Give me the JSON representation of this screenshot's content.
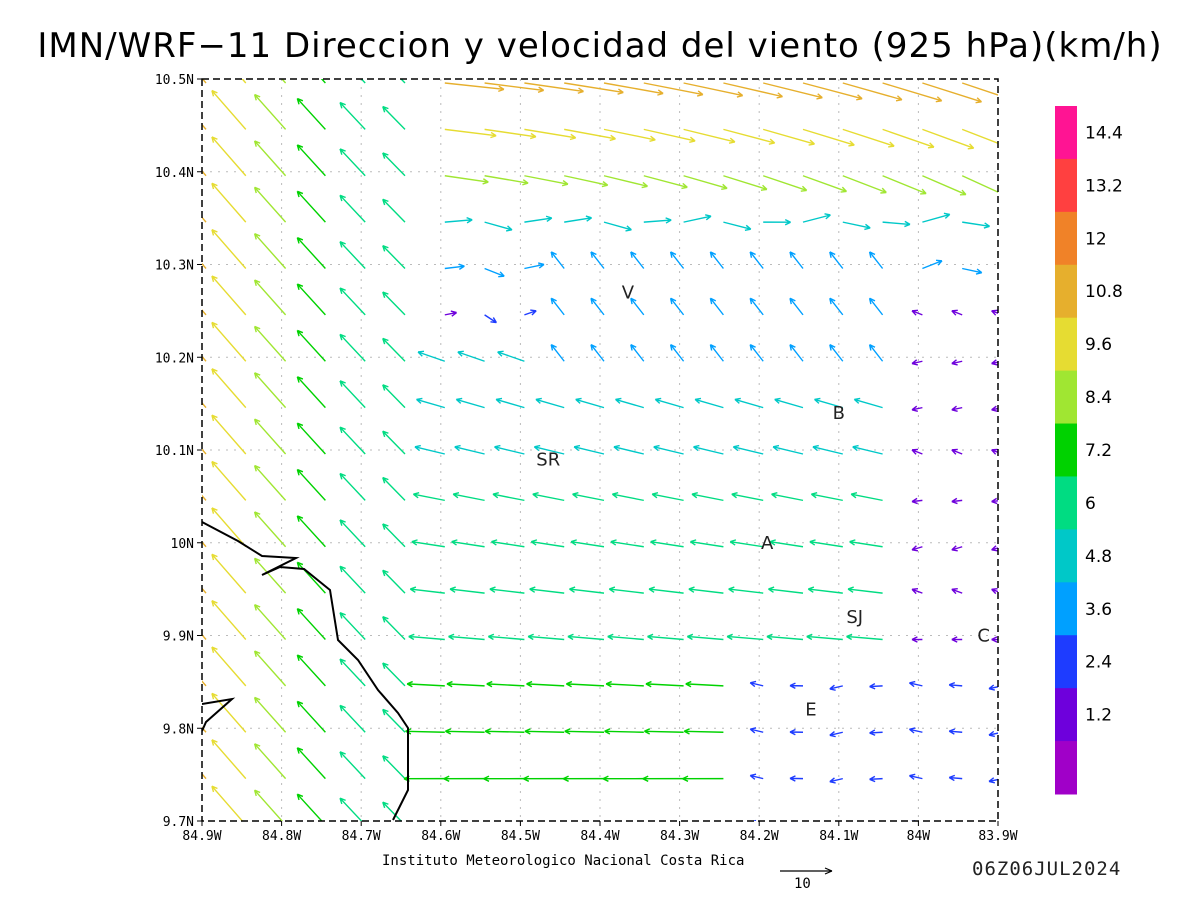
{
  "title": "IMN/WRF−11 Direccion y velocidad del viento (925 hPa)(km/h)",
  "lat_labels": [
    "10.5N",
    "10.4N",
    "10.3N",
    "10.2N",
    "10.1N",
    "10N",
    "9.9N",
    "9.8N",
    "9.7N"
  ],
  "lon_labels": [
    "84.9W",
    "84.8W",
    "84.7W",
    "84.6W",
    "84.5W",
    "84.4W",
    "84.3W",
    "84.2W",
    "84.1W",
    "84W",
    "83.9W"
  ],
  "colorbar": {
    "labels": [
      "14.4",
      "13.2",
      "12",
      "10.8",
      "9.6",
      "8.4",
      "7.2",
      "6",
      "4.8",
      "3.6",
      "2.4",
      "1.2"
    ],
    "colors": [
      "#ff1493",
      "#ff4040",
      "#f08228",
      "#e6af2d",
      "#e6dc32",
      "#a0e632",
      "#00d200",
      "#00dc82",
      "#00c8c8",
      "#00a0ff",
      "#1e3cff",
      "#6e00dc",
      "#a000c8"
    ]
  },
  "cities": [
    {
      "code": "V",
      "lon": -84.365,
      "lat": 10.27
    },
    {
      "code": "B",
      "lon": -84.1,
      "lat": 10.14
    },
    {
      "code": "SR",
      "lon": -84.465,
      "lat": 10.09
    },
    {
      "code": "A",
      "lon": -84.19,
      "lat": 10.0
    },
    {
      "code": "SJ",
      "lon": -84.08,
      "lat": 9.92
    },
    {
      "code": "C",
      "lon": -83.918,
      "lat": 9.9
    },
    {
      "code": "E",
      "lon": -84.135,
      "lat": 9.82
    }
  ],
  "credit": "Instituto Meteorologico Nacional Costa Rica",
  "reference_vector": "10",
  "valid_time": "06Z06JUL2024"
}
